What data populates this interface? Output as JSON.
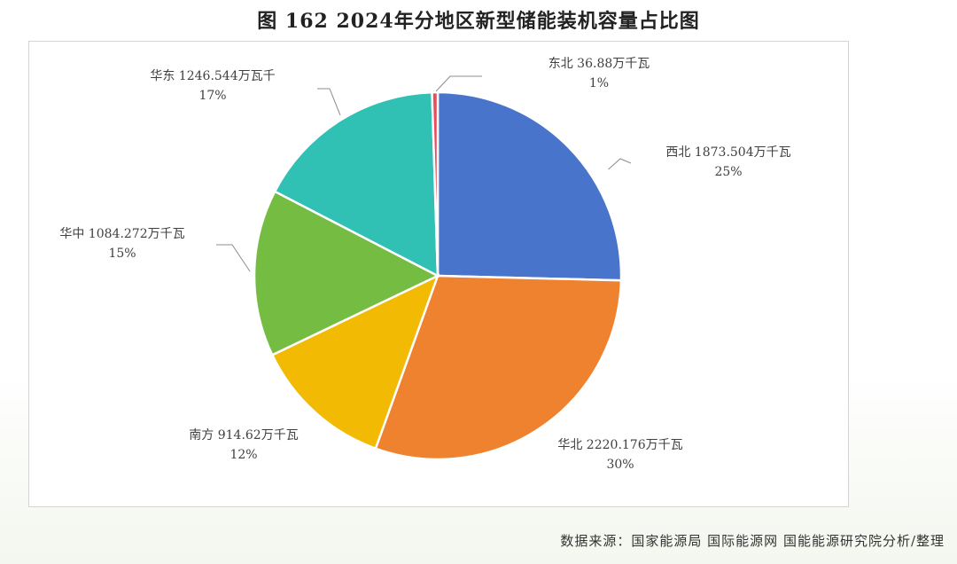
{
  "title": "图 162 2024年分地区新型储能装机容量占比图",
  "source": "数据来源：国家能源局 国际能源网 国能能源研究院分析/整理",
  "chart_data": {
    "type": "pie",
    "title": "图 162 2024年分地区新型储能装机容量占比图",
    "unit": "万千瓦",
    "slices": [
      {
        "name": "西北",
        "value": 1873.504,
        "value_text": "1873.504万千瓦",
        "percent": "25%",
        "color": "#4874cb"
      },
      {
        "name": "华北",
        "value": 2220.176,
        "value_text": "2220.176万千瓦",
        "percent": "30%",
        "color": "#ee822f"
      },
      {
        "name": "南方",
        "value": 914.62,
        "value_text": "914.62万千瓦",
        "percent": "12%",
        "color": "#f2ba02"
      },
      {
        "name": "华中",
        "value": 1084.272,
        "value_text": "1084.272万千瓦",
        "percent": "15%",
        "color": "#75bd42"
      },
      {
        "name": "华东",
        "value": 1246.544,
        "value_text": "1246.544万瓦千",
        "percent": "17%",
        "color": "#30c0b4"
      },
      {
        "name": "东北",
        "value": 36.88,
        "value_text": "36.88万千瓦",
        "percent": "1%",
        "color": "#e54c5e"
      }
    ]
  }
}
